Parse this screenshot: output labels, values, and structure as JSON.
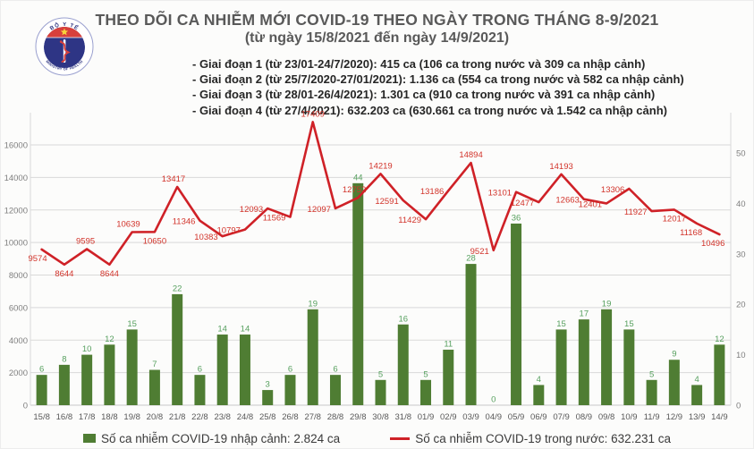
{
  "logo": {
    "top_text": "BỘ Y TẾ",
    "bottom_text": "MINISTRY OF HEALTH"
  },
  "header": {
    "title": "THEO DÕI CA NHIỄM MỚI COVID-19 THEO NGÀY TRONG THÁNG 8-9/2021",
    "subtitle": "(từ ngày 15/8/2021 đến ngày 14/9/2021)",
    "bullets": [
      "- Giai đoạn 1 (từ 23/01-24/7/2020): 415 ca (106 ca trong nước và 309 ca nhập cảnh)",
      "- Giai đoạn 2 (từ 25/7/2020-27/01/2021): 1.136 ca (554 ca trong nước và 582 ca nhập cảnh)",
      "- Giai đoạn 3 (từ 28/01-26/4/2021): 1.301 ca (910 ca trong nước và 391 ca nhập cảnh)",
      "- Giai đoạn 4 (từ 27/4/2021): 632.203 ca (630.661 ca trong nước và 1.542 ca nhập cảnh)"
    ]
  },
  "chart_data": {
    "type": "bar+line",
    "categories": [
      "15/8",
      "16/8",
      "17/8",
      "18/8",
      "19/8",
      "20/8",
      "21/8",
      "22/8",
      "23/8",
      "24/8",
      "25/8",
      "26/8",
      "27/8",
      "28/8",
      "29/8",
      "30/8",
      "31/8",
      "01/9",
      "02/9",
      "03/9",
      "04/9",
      "05/9",
      "06/9",
      "07/9",
      "08/9",
      "09/8",
      "10/9",
      "11/9",
      "12/9",
      "13/9",
      "14/9"
    ],
    "series": [
      {
        "name": "Số ca nhiễm COVID-19 nhập cảnh",
        "type": "bar",
        "axis": "right",
        "color": "#4f7d33",
        "label_color": "#57a05f",
        "values": [
          6,
          8,
          10,
          12,
          15,
          7,
          22,
          6,
          14,
          14,
          3,
          6,
          19,
          6,
          44,
          5,
          16,
          5,
          11,
          28,
          0,
          36,
          4,
          15,
          17,
          19,
          15,
          5,
          9,
          4,
          12
        ]
      },
      {
        "name": "Số ca nhiễm COVID-19 trong nước",
        "type": "line",
        "axis": "left",
        "color": "#cf2127",
        "label_color": "#d2342b",
        "values": [
          9574,
          8644,
          9595,
          8644,
          10639,
          10650,
          13417,
          11346,
          10383,
          10797,
          12093,
          11569,
          17409,
          12097,
          12752,
          14219,
          12591,
          11429,
          13186,
          14894,
          9521,
          13101,
          12477,
          14193,
          12663,
          12401,
          13306,
          11927,
          12017,
          11168,
          10496
        ]
      }
    ],
    "left_axis": {
      "min": 0,
      "max": 16000,
      "step": 2000,
      "ticks": [
        "0",
        "2000",
        "4000",
        "6000",
        "8000",
        "10000",
        "12000",
        "14000",
        "16000"
      ]
    },
    "right_axis": {
      "min": 0,
      "max": 50,
      "step": 10,
      "ticks": [
        "0",
        "10",
        "20",
        "30",
        "40",
        "50"
      ]
    },
    "grid": true,
    "legend_position": "bottom",
    "line_label_sides": [
      "lb",
      "b",
      "la",
      "b",
      "la",
      "b",
      "la",
      "l",
      "l",
      "l",
      "l",
      "l",
      "a",
      "l",
      "la",
      "a",
      "l",
      "l",
      "l",
      "a",
      "l",
      "l",
      "l",
      "a",
      "l",
      "l",
      "l",
      "l",
      "b",
      "lb",
      "lb"
    ],
    "legend": [
      {
        "label": "Số ca nhiễm COVID-19 nhập cảnh: 2.824 ca",
        "swatch": "bar"
      },
      {
        "label": "Số ca nhiễm COVID-19 trong nước: 632.231 ca",
        "swatch": "line"
      }
    ]
  }
}
